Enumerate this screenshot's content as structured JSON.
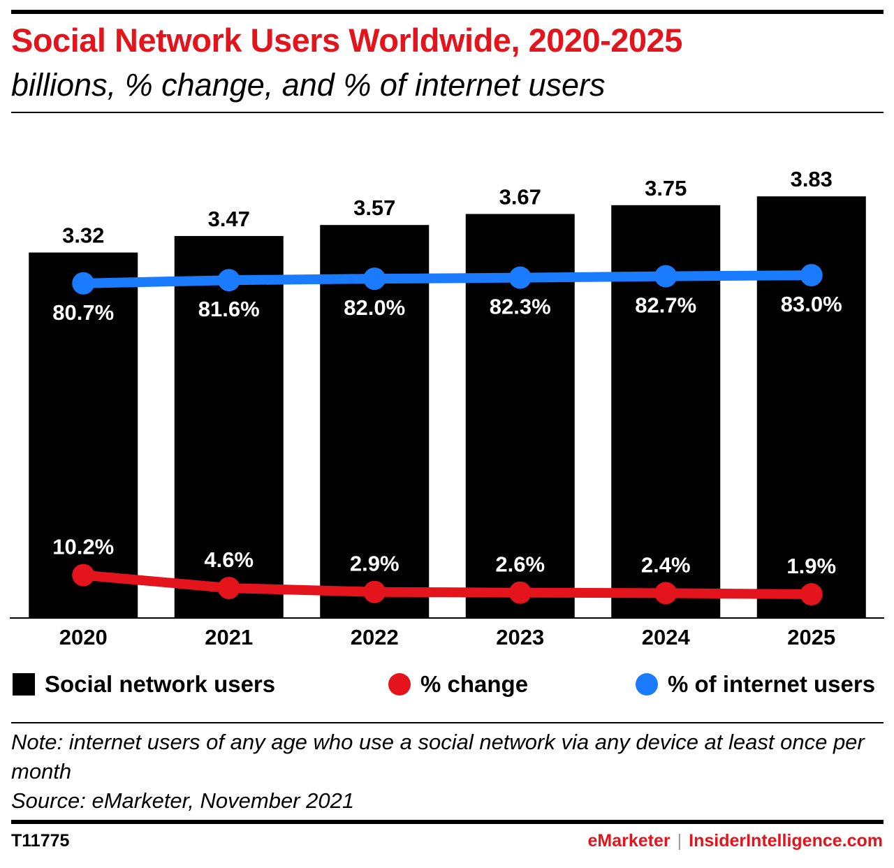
{
  "header": {
    "title": "Social Network Users Worldwide, 2020-2025",
    "subtitle": "billions, % change, and % of internet users"
  },
  "chart_data": {
    "type": "bar",
    "categories": [
      "2020",
      "2021",
      "2022",
      "2023",
      "2024",
      "2025"
    ],
    "series": [
      {
        "name": "Social network users",
        "type": "bar",
        "values": [
          3.32,
          3.47,
          3.57,
          3.67,
          3.75,
          3.83
        ],
        "labels": [
          "3.32",
          "3.47",
          "3.57",
          "3.67",
          "3.75",
          "3.83"
        ],
        "color": "#000000"
      },
      {
        "name": "% change",
        "type": "line",
        "values": [
          10.2,
          4.6,
          2.9,
          2.6,
          2.4,
          1.9
        ],
        "labels": [
          "10.2%",
          "4.6%",
          "2.9%",
          "2.6%",
          "2.4%",
          "1.9%"
        ],
        "color": "#e4141c"
      },
      {
        "name": "% of internet users",
        "type": "line",
        "values": [
          80.7,
          81.6,
          82.0,
          82.3,
          82.7,
          83.0
        ],
        "labels": [
          "80.7%",
          "81.6%",
          "82.0%",
          "82.3%",
          "82.7%",
          "83.0%"
        ],
        "color": "#1a7bff"
      }
    ],
    "bar_ylim": [
      0,
      4.25
    ],
    "legend_position": "bottom",
    "grid": false
  },
  "legend": {
    "bars": "Social network users",
    "change": "% change",
    "internet": "% of internet users"
  },
  "note": {
    "line1": "Note: internet users of any age who use a social network via any device at least once per month",
    "line2": "Source: eMarketer, November 2021"
  },
  "footer": {
    "id": "T11775",
    "brand_a": "eMarketer",
    "separator": "|",
    "brand_b": "InsiderIntelligence.com"
  }
}
